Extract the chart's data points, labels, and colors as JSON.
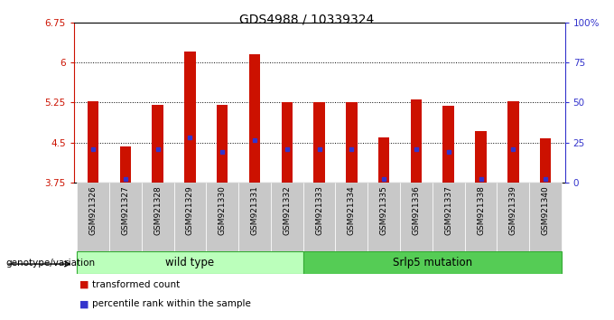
{
  "title": "GDS4988 / 10339324",
  "samples": [
    "GSM921326",
    "GSM921327",
    "GSM921328",
    "GSM921329",
    "GSM921330",
    "GSM921331",
    "GSM921332",
    "GSM921333",
    "GSM921334",
    "GSM921335",
    "GSM921336",
    "GSM921337",
    "GSM921338",
    "GSM921339",
    "GSM921340"
  ],
  "bar_values": [
    5.28,
    4.43,
    5.2,
    6.2,
    5.2,
    6.15,
    5.25,
    5.25,
    5.25,
    4.6,
    5.3,
    5.18,
    4.72,
    5.28,
    4.58
  ],
  "percentile_values": [
    4.38,
    3.82,
    4.38,
    4.6,
    4.32,
    4.55,
    4.37,
    4.38,
    4.38,
    3.82,
    4.38,
    4.32,
    3.82,
    4.38,
    3.82
  ],
  "ylim_min": 3.75,
  "ylim_max": 6.75,
  "yticks": [
    3.75,
    4.5,
    5.25,
    6.0,
    6.75
  ],
  "ytick_labels": [
    "3.75",
    "4.5",
    "5.25",
    "6",
    "6.75"
  ],
  "right_yticks": [
    0,
    25,
    50,
    75,
    100
  ],
  "right_ytick_labels": [
    "0",
    "25",
    "50",
    "75",
    "100%"
  ],
  "dotted_lines": [
    4.5,
    5.25,
    6.0
  ],
  "bar_color": "#cc1100",
  "percentile_color": "#3333cc",
  "bar_width": 0.35,
  "wild_type_count": 7,
  "mutation_count": 8,
  "group_labels": [
    "wild type",
    "Srlp5 mutation"
  ],
  "left_label": "genotype/variation",
  "legend_items": [
    "transformed count",
    "percentile rank within the sample"
  ],
  "plot_bg": "#ffffff",
  "tick_label_color_left": "#cc1100",
  "tick_label_color_right": "#3333cc",
  "xtick_bg_color": "#c8c8c8",
  "wt_color": "#bbffbb",
  "mut_color": "#55cc55"
}
